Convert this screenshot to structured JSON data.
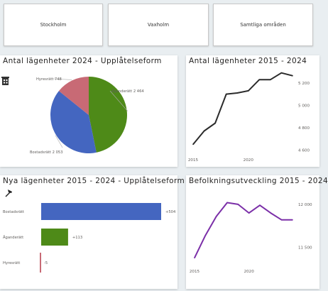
{
  "filters": {
    "stockholm": "Stockholm",
    "vaxholm": "Vaxholm",
    "all": "Samtliga områden"
  },
  "panels": {
    "tenure_2024": {
      "title": "Antal lägenheter 2024 - Upplåtelseform"
    },
    "apartments_trend": {
      "title": "Antal lägenheter 2015 - 2024"
    },
    "new_apartments": {
      "title": "Nya lägenheter 2015 - 2024 - Upplåtelseform"
    },
    "population": {
      "title": "Befolkningsutveckling 2015 - 2024"
    }
  },
  "icons": {
    "building": "building-icon",
    "hammer": "hammer-icon"
  },
  "chart_data": [
    {
      "type": "pie",
      "title": "Antal lägenheter 2024 - Upplåtelseform",
      "categories": [
        "Äganderätt",
        "Bostadsrätt",
        "Hyresrätt"
      ],
      "values": [
        2464,
        2053,
        748
      ],
      "labels": [
        "Äganderätt 2 464",
        "Bostadsrätt 2 053",
        "Hyresrätt 748"
      ],
      "colors": [
        "#4e8a18",
        "#4466c0",
        "#c86a75"
      ]
    },
    {
      "type": "line",
      "title": "Antal lägenheter 2015 - 2024",
      "x": [
        2015,
        2016,
        2017,
        2018,
        2019,
        2020,
        2021,
        2022,
        2023,
        2024
      ],
      "values": [
        4650,
        4770,
        4840,
        5100,
        5110,
        5130,
        5230,
        5230,
        5290,
        5265
      ],
      "xticks": [
        2015,
        2020
      ],
      "yticks": [
        4600,
        4800,
        5000,
        5200
      ],
      "ytick_labels": [
        "4 600",
        "4 800",
        "5 000",
        "5 200"
      ],
      "ylim": [
        4570,
        5320
      ],
      "color": "#2b2b2b"
    },
    {
      "type": "bar",
      "title": "Nya lägenheter 2015 - 2024 - Upplåtelseform",
      "categories": [
        "Bostadsrätt",
        "Äganderätt",
        "Hyresrätt"
      ],
      "values": [
        504,
        113,
        -5
      ],
      "value_labels": [
        "+504",
        "+113",
        "-5"
      ],
      "colors": [
        "#4466c0",
        "#4e8a18",
        "#c86a75"
      ]
    },
    {
      "type": "line",
      "title": "Befolkningsutveckling 2015 - 2024",
      "x": [
        2015,
        2016,
        2017,
        2018,
        2019,
        2020,
        2021,
        2022,
        2023,
        2024
      ],
      "values": [
        11380,
        11640,
        11860,
        12020,
        12000,
        11900,
        11990,
        11900,
        11820,
        11820
      ],
      "xticks": [
        2015,
        2020
      ],
      "yticks": [
        11500,
        12000
      ],
      "ytick_labels": [
        "11 500",
        "12 000"
      ],
      "ylim": [
        11300,
        12090
      ],
      "color": "#7b2fa8"
    }
  ]
}
